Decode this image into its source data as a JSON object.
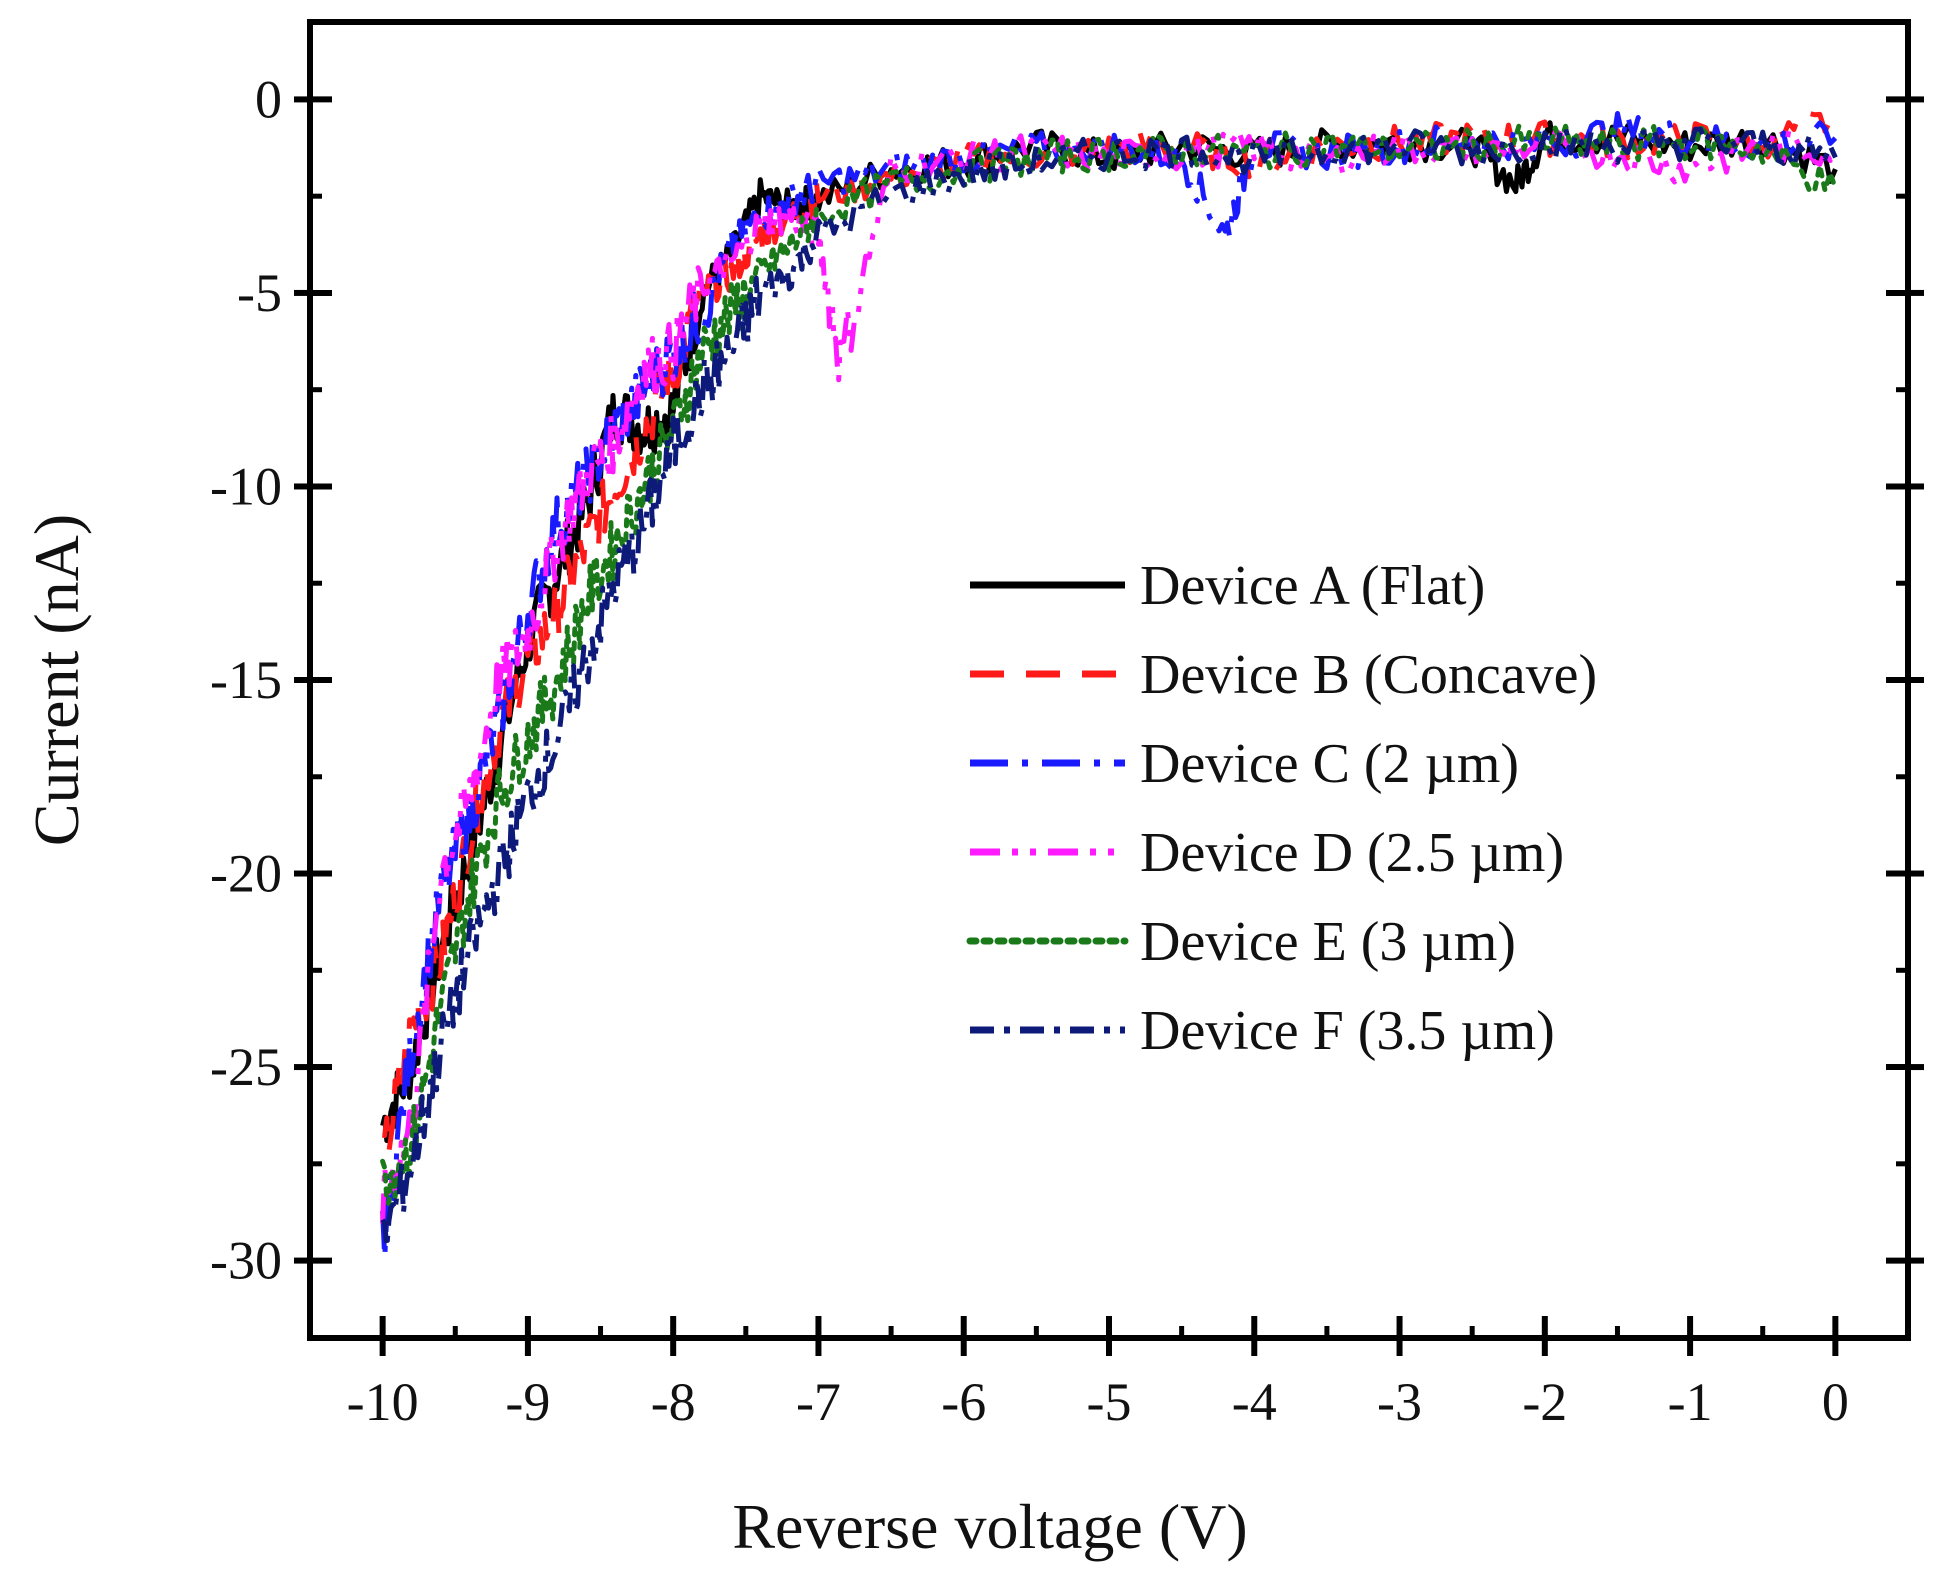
{
  "chart_data": {
    "type": "line",
    "title": "",
    "xlabel": "Reverse voltage (V)",
    "ylabel": "Current (nA)",
    "xlim": [
      -10.5,
      0.5
    ],
    "ylim": [
      -32,
      2
    ],
    "x_ticks": [
      -10,
      -9,
      -8,
      -7,
      -6,
      -5,
      -4,
      -3,
      -2,
      -1,
      0
    ],
    "x_tick_labels": [
      "-10",
      "-9",
      "-8",
      "-7",
      "-6",
      "-5",
      "-4",
      "-3",
      "-2",
      "-1",
      "0"
    ],
    "y_ticks": [
      0,
      -5,
      -10,
      -15,
      -20,
      -25,
      -30
    ],
    "y_tick_labels": [
      "0",
      "-5",
      "-10",
      "-15",
      "-20",
      "-25",
      "-30"
    ],
    "grid": false,
    "legend_position": "center-right",
    "series": [
      {
        "name": "Device A (Flat)",
        "color": "#000000",
        "dash": "solid",
        "points": [
          [
            -10,
            -26.5
          ],
          [
            -9.8,
            -25.0
          ],
          [
            -9.6,
            -22.0
          ],
          [
            -9.4,
            -19.5
          ],
          [
            -9.2,
            -16.8
          ],
          [
            -9.0,
            -14.0
          ],
          [
            -8.8,
            -12.2
          ],
          [
            -8.6,
            -10.5
          ],
          [
            -8.4,
            -8.0
          ],
          [
            -8.2,
            -8.5
          ],
          [
            -8.0,
            -8.0
          ],
          [
            -7.8,
            -5.0
          ],
          [
            -7.6,
            -4.0
          ],
          [
            -7.4,
            -2.5
          ],
          [
            -7.2,
            -2.8
          ],
          [
            -7.0,
            -2.6
          ],
          [
            -6.5,
            -1.8
          ],
          [
            -6.0,
            -1.6
          ],
          [
            -5.5,
            -1.2
          ],
          [
            -5.0,
            -1.5
          ],
          [
            -4.5,
            -1.2
          ],
          [
            -4.0,
            -1.4
          ],
          [
            -3.5,
            -1.2
          ],
          [
            -3.0,
            -1.1
          ],
          [
            -2.5,
            -1.2
          ],
          [
            -2.2,
            -2.2
          ],
          [
            -2.0,
            -1.0
          ],
          [
            -1.5,
            -1.0
          ],
          [
            -1.0,
            -1.2
          ],
          [
            -0.5,
            -1.0
          ],
          [
            0,
            -1.8
          ]
        ]
      },
      {
        "name": "Device B (Concave)",
        "color": "#ff1a1a",
        "dash": "long-dash",
        "points": [
          [
            -10,
            -27.5
          ],
          [
            -9.8,
            -24.0
          ],
          [
            -9.6,
            -22.2
          ],
          [
            -9.4,
            -19.0
          ],
          [
            -9.2,
            -16.2
          ],
          [
            -9.0,
            -14.5
          ],
          [
            -8.8,
            -13.2
          ],
          [
            -8.6,
            -11.5
          ],
          [
            -8.4,
            -10.0
          ],
          [
            -8.2,
            -8.5
          ],
          [
            -8.0,
            -7.0
          ],
          [
            -7.8,
            -5.0
          ],
          [
            -7.6,
            -4.5
          ],
          [
            -7.4,
            -3.5
          ],
          [
            -7.2,
            -3.0
          ],
          [
            -7.0,
            -2.5
          ],
          [
            -6.5,
            -2.0
          ],
          [
            -6.0,
            -1.6
          ],
          [
            -5.5,
            -1.4
          ],
          [
            -5.0,
            -1.3
          ],
          [
            -4.5,
            -1.2
          ],
          [
            -4.0,
            -1.6
          ],
          [
            -3.5,
            -1.2
          ],
          [
            -3.0,
            -1.1
          ],
          [
            -2.5,
            -1.0
          ],
          [
            -2.0,
            -1.0
          ],
          [
            -1.5,
            -1.1
          ],
          [
            -1.0,
            -1.0
          ],
          [
            -0.5,
            -1.1
          ],
          [
            0,
            -0.5
          ]
        ]
      },
      {
        "name": "Device C (2 µm)",
        "color": "#1a1aff",
        "dash": "dash-dot",
        "points": [
          [
            -10,
            -29.5
          ],
          [
            -9.8,
            -24.5
          ],
          [
            -9.6,
            -20.5
          ],
          [
            -9.4,
            -18.5
          ],
          [
            -9.2,
            -16.0
          ],
          [
            -9.0,
            -13.2
          ],
          [
            -8.8,
            -11.0
          ],
          [
            -8.6,
            -9.8
          ],
          [
            -8.4,
            -8.5
          ],
          [
            -8.2,
            -7.5
          ],
          [
            -8.0,
            -6.5
          ],
          [
            -7.8,
            -5.5
          ],
          [
            -7.6,
            -3.8
          ],
          [
            -7.4,
            -3.0
          ],
          [
            -7.2,
            -2.6
          ],
          [
            -7.0,
            -2.2
          ],
          [
            -6.5,
            -1.8
          ],
          [
            -6.0,
            -1.5
          ],
          [
            -5.5,
            -1.3
          ],
          [
            -5.0,
            -1.2
          ],
          [
            -4.5,
            -1.5
          ],
          [
            -4.2,
            -3.5
          ],
          [
            -4.0,
            -1.2
          ],
          [
            -3.5,
            -1.4
          ],
          [
            -3.0,
            -1.2
          ],
          [
            -2.5,
            -1.0
          ],
          [
            -2.0,
            -1.2
          ],
          [
            -1.5,
            -0.8
          ],
          [
            -1.0,
            -1.0
          ],
          [
            -0.5,
            -1.2
          ],
          [
            0,
            -1.0
          ]
        ]
      },
      {
        "name": "Device D (2.5 µm)",
        "color": "#ff1aff",
        "dash": "dash-dot-dot",
        "points": [
          [
            -10,
            -28.5
          ],
          [
            -9.8,
            -26.5
          ],
          [
            -9.6,
            -20.0
          ],
          [
            -9.4,
            -18.0
          ],
          [
            -9.2,
            -15.0
          ],
          [
            -9.0,
            -13.8
          ],
          [
            -8.8,
            -11.5
          ],
          [
            -8.6,
            -9.8
          ],
          [
            -8.4,
            -8.8
          ],
          [
            -8.2,
            -7.0
          ],
          [
            -8.0,
            -6.5
          ],
          [
            -7.8,
            -4.8
          ],
          [
            -7.6,
            -4.2
          ],
          [
            -7.4,
            -3.2
          ],
          [
            -7.2,
            -3.0
          ],
          [
            -7.0,
            -3.5
          ],
          [
            -6.85,
            -6.8
          ],
          [
            -6.5,
            -1.8
          ],
          [
            -6.0,
            -1.5
          ],
          [
            -5.5,
            -1.3
          ],
          [
            -5.0,
            -1.5
          ],
          [
            -4.5,
            -1.4
          ],
          [
            -4.0,
            -1.2
          ],
          [
            -3.5,
            -1.6
          ],
          [
            -3.0,
            -1.2
          ],
          [
            -2.5,
            -1.4
          ],
          [
            -2.0,
            -1.2
          ],
          [
            -1.5,
            -1.4
          ],
          [
            -1.0,
            -1.8
          ],
          [
            -0.5,
            -1.2
          ],
          [
            0,
            -1.3
          ]
        ]
      },
      {
        "name": "Device E (3 µm)",
        "color": "#1a7a1a",
        "dash": "dot",
        "points": [
          [
            -10,
            -28.0
          ],
          [
            -9.8,
            -27.0
          ],
          [
            -9.6,
            -23.5
          ],
          [
            -9.4,
            -20.5
          ],
          [
            -9.2,
            -18.0
          ],
          [
            -9.0,
            -16.5
          ],
          [
            -8.8,
            -15.0
          ],
          [
            -8.6,
            -13.0
          ],
          [
            -8.4,
            -11.5
          ],
          [
            -8.2,
            -10.0
          ],
          [
            -8.0,
            -8.5
          ],
          [
            -7.8,
            -6.5
          ],
          [
            -7.6,
            -5.5
          ],
          [
            -7.4,
            -4.5
          ],
          [
            -7.2,
            -3.8
          ],
          [
            -7.0,
            -3.0
          ],
          [
            -6.5,
            -2.2
          ],
          [
            -6.0,
            -1.8
          ],
          [
            -5.5,
            -1.5
          ],
          [
            -5.0,
            -1.4
          ],
          [
            -4.5,
            -1.3
          ],
          [
            -4.0,
            -1.4
          ],
          [
            -3.5,
            -1.2
          ],
          [
            -3.0,
            -1.3
          ],
          [
            -2.5,
            -1.2
          ],
          [
            -2.0,
            -1.1
          ],
          [
            -1.5,
            -1.2
          ],
          [
            -1.0,
            -1.1
          ],
          [
            -0.5,
            -1.3
          ],
          [
            0,
            -2.3
          ]
        ]
      },
      {
        "name": "Device F (3.5 µm)",
        "color": "#0d1a7a",
        "dash": "long-dash-dot",
        "points": [
          [
            -10,
            -29.5
          ],
          [
            -9.8,
            -27.5
          ],
          [
            -9.6,
            -24.5
          ],
          [
            -9.4,
            -22.0
          ],
          [
            -9.2,
            -20.0
          ],
          [
            -9.0,
            -18.0
          ],
          [
            -8.8,
            -16.5
          ],
          [
            -8.6,
            -14.5
          ],
          [
            -8.4,
            -12.5
          ],
          [
            -8.2,
            -11.0
          ],
          [
            -8.0,
            -9.0
          ],
          [
            -7.8,
            -7.5
          ],
          [
            -7.6,
            -6.5
          ],
          [
            -7.4,
            -5.0
          ],
          [
            -7.2,
            -4.5
          ],
          [
            -7.0,
            -3.5
          ],
          [
            -6.5,
            -2.5
          ],
          [
            -6.0,
            -1.9
          ],
          [
            -5.5,
            -1.6
          ],
          [
            -5.0,
            -1.4
          ],
          [
            -4.5,
            -1.3
          ],
          [
            -4.0,
            -1.5
          ],
          [
            -3.5,
            -1.3
          ],
          [
            -3.0,
            -1.2
          ],
          [
            -2.5,
            -1.3
          ],
          [
            -2.0,
            -1.1
          ],
          [
            -1.5,
            -1.2
          ],
          [
            -1.0,
            -1.1
          ],
          [
            -0.5,
            -1.2
          ],
          [
            0,
            -1.5
          ]
        ]
      }
    ]
  }
}
